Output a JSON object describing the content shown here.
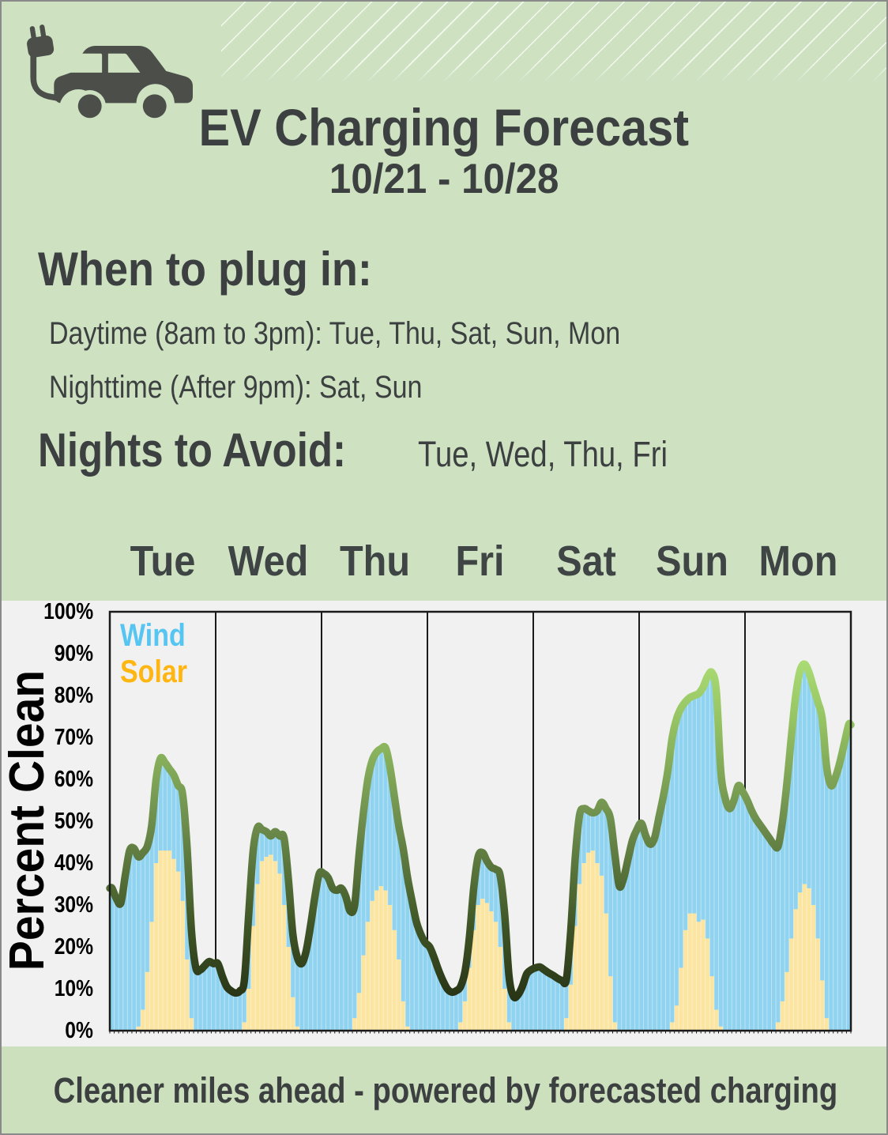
{
  "header": {
    "title": "EV Charging Forecast",
    "date_range": "10/21 - 10/28"
  },
  "icons": {
    "car": "ev-car-plug-icon"
  },
  "recommendations": {
    "heading": "When to plug in:",
    "lines": [
      {
        "text": "Daytime (8am to 3pm): Tue, Thu, Sat, Sun, Mon"
      },
      {
        "text": "Nighttime  (After 9pm): Sat, Sun"
      }
    ],
    "avoid_heading": "Nights to Avoid:",
    "avoid_days": "Tue, Wed, Thu, Fri"
  },
  "chart": {
    "day_labels": [
      "Tue",
      "Wed",
      "Thu",
      "Fri",
      "Sat",
      "Sun",
      "Mon"
    ],
    "y_axis": {
      "label": "Percent Clean",
      "ticks": [
        "100%",
        "90%",
        "80%",
        "70%",
        "60%",
        "50%",
        "40%",
        "30%",
        "20%",
        "10%",
        "0%"
      ]
    },
    "legend": {
      "wind_label": "Wind",
      "solar_label": "Solar"
    },
    "colors": {
      "wind_fill": "#8FD3F0",
      "solar_fill": "#FBE5A1",
      "wind_text": "#56C5F1",
      "solar_text": "#FFB612",
      "plot_background": "#F1F1F1",
      "header_green": "#CEE2C2",
      "line_gradient": [
        "#1E260F",
        "#3F5526",
        "#6E8E4D",
        "#97C564",
        "#BBEF82"
      ]
    }
  },
  "chart_data": {
    "type": "area",
    "title": "EV Charging Forecast 10/21 - 10/28",
    "xlabel": "",
    "ylabel": "Percent Clean",
    "ylim": [
      0,
      100
    ],
    "x_unit": "hour (24 per day)",
    "stacked": true,
    "grid": "day-divider vertical lines only",
    "legend_position": "top-left inside plot",
    "total_line": "thick smoothed line of Wind+Solar total, vertical gradient dark-olive (low) to light-green (high)",
    "categories": [
      "Tue",
      "Wed",
      "Thu",
      "Fri",
      "Sat",
      "Sun",
      "Mon"
    ],
    "series": [
      {
        "name": "Solar",
        "color": "#FBE5A1",
        "values_by_day": {
          "Tue": [
            0,
            0,
            0,
            0,
            0,
            0,
            1,
            5,
            14,
            26,
            40,
            43,
            43,
            43,
            41,
            38,
            31,
            17,
            3,
            0,
            0,
            0,
            0,
            0
          ],
          "Wed": [
            0,
            0,
            0,
            0,
            0,
            0,
            2,
            10,
            25,
            35,
            40.5,
            41.5,
            42,
            40.5,
            37.5,
            30,
            20,
            8,
            1,
            0,
            0,
            0,
            0,
            0
          ],
          "Thu": [
            0,
            0,
            0,
            0,
            0,
            0,
            0,
            3,
            9,
            18,
            26,
            31,
            33.5,
            34.5,
            33.5,
            30,
            24,
            17,
            7,
            1,
            0,
            0,
            0,
            0
          ],
          "Fri": [
            0,
            0,
            0,
            0,
            0,
            0,
            0,
            2,
            7,
            15,
            24,
            30,
            31.5,
            30.5,
            28.5,
            26,
            20,
            10,
            2,
            0,
            0,
            0,
            0,
            0
          ],
          "Sat": [
            0,
            0,
            0,
            0,
            0,
            0,
            0,
            3,
            11,
            25,
            35,
            40,
            42.5,
            43,
            40,
            37,
            28,
            13,
            2,
            0,
            0,
            0,
            0,
            0
          ],
          "Sun": [
            0,
            0,
            0,
            0,
            0,
            0,
            0,
            2,
            6,
            15,
            24,
            28,
            28,
            26,
            26.5,
            22,
            13,
            5,
            1,
            0,
            0,
            0,
            0,
            0
          ],
          "Mon": [
            0,
            0,
            0,
            0,
            0,
            0,
            0,
            2,
            7,
            14,
            22,
            29,
            33,
            35,
            34,
            30,
            22,
            12,
            3,
            0,
            0,
            0,
            0,
            0
          ]
        }
      },
      {
        "name": "Wind",
        "color": "#8FD3F0",
        "values_by_day": {
          "Tue": [
            34,
            31.5,
            30.5,
            37,
            43,
            43.5,
            40.5,
            37.5,
            30,
            23,
            20,
            22,
            21,
            19.5,
            20,
            20.5,
            25.5,
            27,
            21,
            15,
            14.5,
            15.5,
            16.5,
            16
          ],
          "Wed": [
            16,
            13,
            10.5,
            9.5,
            9,
            9.5,
            10,
            18,
            18,
            13.5,
            7.5,
            6,
            4.5,
            7,
            9,
            16,
            16,
            15,
            16.5,
            16,
            19,
            25,
            32,
            37.5
          ],
          "Thu": [
            37.5,
            36.5,
            34,
            33.5,
            34,
            32,
            28.5,
            27,
            33,
            34,
            34,
            33.5,
            33,
            32.8,
            34,
            33,
            32,
            32,
            36.5,
            35.5,
            31,
            26,
            23,
            21
          ],
          "Fri": [
            20,
            17.5,
            14.5,
            12,
            10,
            9.2,
            9.5,
            8.5,
            7,
            7,
            10,
            11.5,
            11,
            10,
            10.5,
            12.5,
            17,
            18,
            11,
            8.2,
            8.5,
            10.5,
            13.5,
            14.5
          ],
          "Sat": [
            15,
            15.2,
            14.5,
            13.8,
            13.2,
            12.5,
            12,
            9.2,
            13,
            16,
            16.5,
            13,
            10,
            9,
            12.5,
            17.5,
            25,
            37.5,
            40,
            34.5,
            36.5,
            41,
            45.5,
            48
          ],
          "Sun": [
            49.5,
            46.5,
            44.5,
            46,
            51,
            56,
            62,
            68,
            68.5,
            62,
            54.5,
            51.5,
            52,
            54.5,
            55.5,
            62.5,
            72.5,
            76,
            61,
            55.5,
            53,
            55,
            58.5,
            57
          ],
          "Mon": [
            55,
            52.5,
            50.5,
            49,
            47.5,
            46,
            44.5,
            42,
            43,
            45,
            48,
            51,
            53,
            52.5,
            51.5,
            52,
            56.5,
            62.5,
            60,
            58.5,
            60.5,
            64,
            68.5,
            73
          ]
        }
      }
    ]
  },
  "footer": {
    "text": "Cleaner miles ahead - powered by forecasted charging"
  }
}
